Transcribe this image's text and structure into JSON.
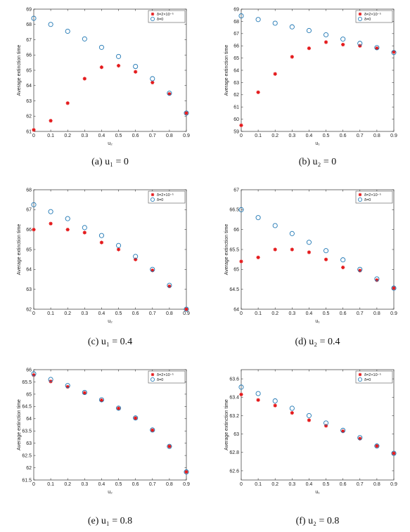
{
  "chart_data": [
    {
      "type": "scatter",
      "caption": "(a)  u₁ = 0",
      "xlabel": "u₂",
      "ylabel": "Average extinction time",
      "xlim": [
        0,
        0.9
      ],
      "ylim": [
        61,
        69
      ],
      "xticks": [
        "0",
        "0.1",
        "0.2",
        "0.3",
        "0.4",
        "0.5",
        "0.6",
        "0.7",
        "0.8",
        "0.9"
      ],
      "yticks": [
        "61",
        "62",
        "63",
        "64",
        "65",
        "66",
        "67",
        "68",
        "69"
      ],
      "x": [
        0,
        0.1,
        0.2,
        0.3,
        0.4,
        0.5,
        0.6,
        0.7,
        0.8,
        0.9
      ],
      "series": [
        {
          "name": "δ=2×10⁻⁵",
          "marker": "star",
          "color": "#e41a1c",
          "values": [
            61.1,
            61.7,
            62.85,
            64.45,
            65.2,
            65.3,
            64.9,
            64.2,
            63.45,
            62.2
          ]
        },
        {
          "name": "δ=0",
          "marker": "circle",
          "color": "#1f77b4",
          "values": [
            68.4,
            68.0,
            67.55,
            67.05,
            66.5,
            65.9,
            65.25,
            64.45,
            63.5,
            62.2
          ]
        }
      ],
      "legend": "top-right"
    },
    {
      "type": "scatter",
      "caption": "(b)  u₂ = 0",
      "xlabel": "u₁",
      "ylabel": "Average extinction time",
      "xlim": [
        0,
        0.9
      ],
      "ylim": [
        59,
        69
      ],
      "xticks": [
        "0",
        "0.1",
        "0.2",
        "0.3",
        "0.4",
        "0.5",
        "0.6",
        "0.7",
        "0.8",
        "0.9"
      ],
      "yticks": [
        "59",
        "60",
        "61",
        "62",
        "63",
        "64",
        "65",
        "66",
        "67",
        "68",
        "69"
      ],
      "x": [
        0,
        0.1,
        0.2,
        0.3,
        0.4,
        0.5,
        0.6,
        0.7,
        0.8,
        0.9
      ],
      "series": [
        {
          "name": "δ=2×10⁻⁵",
          "marker": "star",
          "color": "#e41a1c",
          "values": [
            59.5,
            62.2,
            63.7,
            65.1,
            65.8,
            66.3,
            66.1,
            66.0,
            65.8,
            65.5
          ]
        },
        {
          "name": "δ=0",
          "marker": "circle",
          "color": "#1f77b4",
          "values": [
            68.45,
            68.15,
            67.85,
            67.55,
            67.25,
            66.9,
            66.55,
            66.2,
            65.85,
            65.45
          ]
        }
      ],
      "legend": "top-right"
    },
    {
      "type": "scatter",
      "caption": "(c)  u₁ = 0.4",
      "xlabel": "u₂",
      "ylabel": "Average extinction time",
      "xlim": [
        0,
        0.9
      ],
      "ylim": [
        62,
        68
      ],
      "xticks": [
        "0",
        "0.1",
        "0.2",
        "0.3",
        "0.4",
        "0.5",
        "0.6",
        "0.7",
        "0.8",
        "0.9"
      ],
      "yticks": [
        "62",
        "63",
        "64",
        "65",
        "66",
        "67",
        "68"
      ],
      "x": [
        0,
        0.1,
        0.2,
        0.3,
        0.4,
        0.5,
        0.6,
        0.7,
        0.8,
        0.9
      ],
      "series": [
        {
          "name": "δ=2×10⁻⁵",
          "marker": "star",
          "color": "#e41a1c",
          "values": [
            66.0,
            66.3,
            66.0,
            65.85,
            65.35,
            65.0,
            64.5,
            63.95,
            63.15,
            62.0
          ]
        },
        {
          "name": "δ=0",
          "marker": "circle",
          "color": "#1f77b4",
          "values": [
            67.25,
            66.9,
            66.55,
            66.1,
            65.7,
            65.2,
            64.65,
            64.0,
            63.2,
            62.0
          ]
        }
      ],
      "legend": "top-right"
    },
    {
      "type": "scatter",
      "caption": "(d)  u₂ = 0.4",
      "xlabel": "u₁",
      "ylabel": "Average extinction time",
      "xlim": [
        0,
        0.9
      ],
      "ylim": [
        64,
        67
      ],
      "xticks": [
        "0",
        "0.1",
        "0.2",
        "0.3",
        "0.4",
        "0.5",
        "0.6",
        "0.7",
        "0.8",
        "0.9"
      ],
      "yticks": [
        "64",
        "64.5",
        "65",
        "65.5",
        "66",
        "66.5",
        "67"
      ],
      "x": [
        0,
        0.1,
        0.2,
        0.3,
        0.4,
        0.5,
        0.6,
        0.7,
        0.8,
        0.9
      ],
      "series": [
        {
          "name": "δ=2×10⁻⁵",
          "marker": "star",
          "color": "#e41a1c",
          "values": [
            65.2,
            65.3,
            65.5,
            65.5,
            65.43,
            65.25,
            65.05,
            64.97,
            64.73,
            64.53
          ]
        },
        {
          "name": "δ=0",
          "marker": "circle",
          "color": "#1f77b4",
          "values": [
            66.5,
            66.3,
            66.1,
            65.9,
            65.68,
            65.47,
            65.24,
            65.0,
            64.76,
            64.53
          ]
        }
      ],
      "legend": "top-right"
    },
    {
      "type": "scatter",
      "caption": "(e)  u₁ = 0.8",
      "xlabel": "u₂",
      "ylabel": "Average extinction time",
      "xlim": [
        0,
        0.9
      ],
      "ylim": [
        61.5,
        66
      ],
      "xticks": [
        "0",
        "0.1",
        "0.2",
        "0.3",
        "0.4",
        "0.5",
        "0.6",
        "0.7",
        "0.8",
        "0.9"
      ],
      "yticks": [
        "61.5",
        "62",
        "62.5",
        "63",
        "63.5",
        "64",
        "64.5",
        "65",
        "65.5",
        "66"
      ],
      "x": [
        0,
        0.1,
        0.2,
        0.3,
        0.4,
        0.5,
        0.6,
        0.7,
        0.8,
        0.9
      ],
      "series": [
        {
          "name": "δ=2×10⁻⁵",
          "marker": "star",
          "color": "#e41a1c",
          "values": [
            65.78,
            65.52,
            65.3,
            65.05,
            64.75,
            64.42,
            64.02,
            63.53,
            62.87,
            61.83
          ]
        },
        {
          "name": "δ=0",
          "marker": "circle",
          "color": "#1f77b4",
          "values": [
            65.83,
            65.6,
            65.35,
            65.07,
            64.77,
            64.43,
            64.03,
            63.54,
            62.87,
            61.83
          ]
        }
      ],
      "legend": "top-right"
    },
    {
      "type": "scatter",
      "caption": "(f)  u₂ = 0.8",
      "xlabel": "u₁",
      "ylabel": "Average extinction time",
      "xlim": [
        0,
        0.9
      ],
      "ylim": [
        62.5,
        63.7
      ],
      "xticks": [
        "0",
        "0.1",
        "0.2",
        "0.3",
        "0.4",
        "0.5",
        "0.6",
        "0.7",
        "0.8",
        "0.9"
      ],
      "yticks": [
        "62.6",
        "62.8",
        "63",
        "63.2",
        "63.4",
        "63.6"
      ],
      "yticks_values": [
        62.6,
        62.8,
        63.0,
        63.2,
        63.4,
        63.6
      ],
      "x": [
        0,
        0.1,
        0.2,
        0.3,
        0.4,
        0.5,
        0.6,
        0.7,
        0.8,
        0.9
      ],
      "series": [
        {
          "name": "δ=2×10⁻⁵",
          "marker": "star",
          "color": "#e41a1c",
          "values": [
            63.43,
            63.37,
            63.31,
            63.23,
            63.15,
            63.09,
            63.03,
            62.95,
            62.87,
            62.79
          ]
        },
        {
          "name": "δ=0",
          "marker": "circle",
          "color": "#1f77b4",
          "values": [
            63.51,
            63.44,
            63.36,
            63.28,
            63.2,
            63.12,
            63.04,
            62.96,
            62.87,
            62.79
          ]
        }
      ],
      "legend": "top-right"
    }
  ]
}
